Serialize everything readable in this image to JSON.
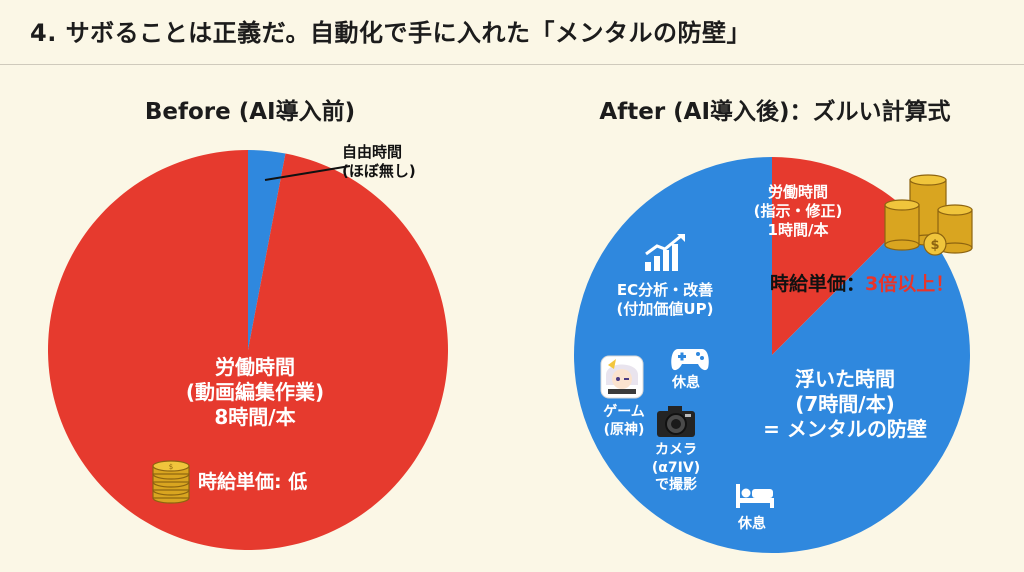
{
  "title": "4. サボることは正義だ。自動化で手に入れた「メンタルの防壁」",
  "colors": {
    "background": "#fbf7e6",
    "red": "#e63a2e",
    "blue": "#2f88de",
    "accent_red_text": "#e8352b"
  },
  "chart_data": [
    {
      "type": "pie",
      "title": "Before (AI導入前)",
      "slices": [
        {
          "label": [
            "労働時間",
            "(動画編集作業)",
            "8時間/本"
          ],
          "value": 97,
          "color": "#e63a2e"
        },
        {
          "label": [
            "自由時間",
            "(ほぼ無し)"
          ],
          "value": 3,
          "color": "#2f88de"
        }
      ],
      "annotation": "時給単価: 低",
      "annotation_icon": "coin-stack-icon"
    },
    {
      "type": "pie",
      "title": "After (AI導入後)：ズルい計算式",
      "slices": [
        {
          "label": [
            "労働時間",
            "(指示・修正)",
            "1時間/本"
          ],
          "value": 1,
          "color": "#e63a2e"
        },
        {
          "label": [
            "浮いた時間",
            "(7時間/本)",
            "= メンタルの防壁"
          ],
          "value": 7,
          "color": "#2f88de"
        }
      ],
      "annotation_prefix": "時給単価：",
      "annotation_highlight": "3倍以上！",
      "annotation_icon": "coin-stack-icon",
      "sub_activities": [
        {
          "label": [
            "EC分析・改善",
            "(付加価値UP)"
          ],
          "icon": "growth-chart-icon"
        },
        {
          "label": [
            "休息"
          ],
          "icon": "gamepad-icon"
        },
        {
          "label": [
            "ゲーム",
            "(原神)"
          ],
          "icon": "game-character-icon"
        },
        {
          "label": [
            "カメラ",
            "(α7IV)",
            "で撮影"
          ],
          "icon": "camera-icon"
        },
        {
          "label": [
            "休息"
          ],
          "icon": "bed-icon"
        }
      ]
    }
  ]
}
